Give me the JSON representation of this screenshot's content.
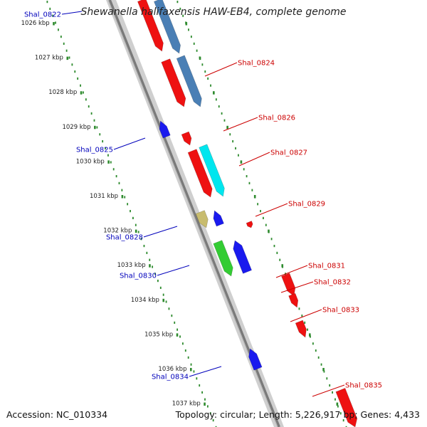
{
  "title": "Shewanella halifaxensis HAW-EB4, complete genome",
  "footer": {
    "accession": "Accession: NC_010334",
    "summary": "Topology: circular; Length: 5,226,917 bp; Genes: 4,433"
  },
  "colors": {
    "forward_label": "#cc0000",
    "reverse_label": "#0000bb",
    "backbone": "#888888",
    "tick_dots": "#2e8b2e"
  },
  "kbp_ticks": [
    "1026 kbp",
    "1027 kbp",
    "1028 kbp",
    "1029 kbp",
    "1030 kbp",
    "1031 kbp",
    "1032 kbp",
    "1033 kbp",
    "1034 kbp",
    "1035 kbp",
    "1036 kbp",
    "1037 kbp"
  ],
  "gene_labels": [
    {
      "text": "Shal_0822",
      "strand": "reverse"
    },
    {
      "text": "Shal_0824",
      "strand": "forward"
    },
    {
      "text": "Shal_0826",
      "strand": "forward"
    },
    {
      "text": "Shal_0827",
      "strand": "forward"
    },
    {
      "text": "Shal_0825",
      "strand": "reverse"
    },
    {
      "text": "Shal_0829",
      "strand": "forward"
    },
    {
      "text": "Shal_0828",
      "strand": "reverse"
    },
    {
      "text": "Shal_0831",
      "strand": "forward"
    },
    {
      "text": "Shal_0832",
      "strand": "forward"
    },
    {
      "text": "Shal_0830",
      "strand": "reverse"
    },
    {
      "text": "Shal_0833",
      "strand": "forward"
    },
    {
      "text": "Shal_0834",
      "strand": "reverse"
    },
    {
      "text": "Shal_0835",
      "strand": "forward"
    }
  ]
}
